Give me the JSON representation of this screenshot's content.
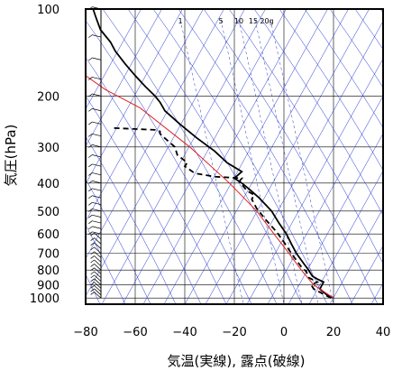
{
  "chart_data": {
    "type": "line",
    "xlabel": "気温(実線), 露点(破線)",
    "ylabel": "気圧(hPa)",
    "x_ticks": [
      -80,
      -60,
      -40,
      -20,
      0,
      20,
      40
    ],
    "y_ticks": [
      100,
      200,
      300,
      400,
      500,
      600,
      700,
      800,
      900,
      1000
    ],
    "xlim": [
      -80,
      40
    ],
    "ylim": [
      1050,
      100
    ],
    "y_scale": "log",
    "grid": true,
    "mixing_ratio_labels": [
      "1",
      "5",
      "10",
      "15",
      "20g"
    ],
    "series": [
      {
        "kind": "temperature",
        "style": "solid",
        "color": "#000000",
        "points": [
          {
            "t": 20.0,
            "p": 1000
          },
          {
            "t": 17.0,
            "p": 970
          },
          {
            "t": 14.5,
            "p": 930
          },
          {
            "t": 16.0,
            "p": 880
          },
          {
            "t": 13.5,
            "p": 860
          },
          {
            "t": 11.5,
            "p": 840
          },
          {
            "t": 9.5,
            "p": 790
          },
          {
            "t": 8.0,
            "p": 760
          },
          {
            "t": 5.0,
            "p": 700
          },
          {
            "t": 3.0,
            "p": 650
          },
          {
            "t": 1.0,
            "p": 600
          },
          {
            "t": -2.0,
            "p": 550
          },
          {
            "t": -5.0,
            "p": 500
          },
          {
            "t": -10.0,
            "p": 450
          },
          {
            "t": -14.0,
            "p": 420
          },
          {
            "t": -17.0,
            "p": 400
          },
          {
            "t": -20.0,
            "p": 385
          },
          {
            "t": -17.0,
            "p": 365
          },
          {
            "t": -23.0,
            "p": 340
          },
          {
            "t": -28.0,
            "p": 310
          },
          {
            "t": -35.0,
            "p": 280
          },
          {
            "t": -42.0,
            "p": 250
          },
          {
            "t": -48.0,
            "p": 225
          },
          {
            "t": -50.0,
            "p": 210
          },
          {
            "t": -52.0,
            "p": 200
          },
          {
            "t": -56.0,
            "p": 185
          },
          {
            "t": -60.0,
            "p": 170
          },
          {
            "t": -64.0,
            "p": 155
          },
          {
            "t": -68.0,
            "p": 140
          },
          {
            "t": -70.0,
            "p": 130
          },
          {
            "t": -74.0,
            "p": 118
          },
          {
            "t": -75.0,
            "p": 112
          },
          {
            "t": -76.0,
            "p": 106
          },
          {
            "t": -77.0,
            "p": 100
          }
        ]
      },
      {
        "kind": "dewpoint",
        "style": "dashed",
        "color": "#000000",
        "points": [
          {
            "t": 19.0,
            "p": 1000
          },
          {
            "t": 15.0,
            "p": 960
          },
          {
            "t": 12.0,
            "p": 930
          },
          {
            "t": 11.0,
            "p": 900
          },
          {
            "t": 13.5,
            "p": 880
          },
          {
            "t": 10.0,
            "p": 850
          },
          {
            "t": 9.0,
            "p": 810
          },
          {
            "t": 7.0,
            "p": 780
          },
          {
            "t": 4.0,
            "p": 720
          },
          {
            "t": 2.0,
            "p": 680
          },
          {
            "t": 0.0,
            "p": 640
          },
          {
            "t": -3.0,
            "p": 590
          },
          {
            "t": -7.0,
            "p": 540
          },
          {
            "t": -11.0,
            "p": 490
          },
          {
            "t": -13.0,
            "p": 455
          },
          {
            "t": -12.0,
            "p": 440
          },
          {
            "t": -15.0,
            "p": 425
          },
          {
            "t": -18.0,
            "p": 395
          },
          {
            "t": -17.0,
            "p": 385
          },
          {
            "t": -28.0,
            "p": 380
          },
          {
            "t": -36.0,
            "p": 370
          },
          {
            "t": -40.0,
            "p": 350
          },
          {
            "t": -39.0,
            "p": 340
          },
          {
            "t": -43.0,
            "p": 320
          },
          {
            "t": -44.0,
            "p": 300
          },
          {
            "t": -48.0,
            "p": 280
          },
          {
            "t": -50.0,
            "p": 270
          },
          {
            "t": -50.0,
            "p": 265
          },
          {
            "t": -52.0,
            "p": 262
          },
          {
            "t": -69.0,
            "p": 258
          }
        ]
      },
      {
        "kind": "reference",
        "style": "solid",
        "color": "#e02020",
        "points": [
          {
            "t": 20.0,
            "p": 1000
          },
          {
            "t": 12.0,
            "p": 900
          },
          {
            "t": 7.0,
            "p": 800
          },
          {
            "t": 2.0,
            "p": 700
          },
          {
            "t": -4.0,
            "p": 600
          },
          {
            "t": -11.0,
            "p": 500
          },
          {
            "t": -22.0,
            "p": 400
          },
          {
            "t": -38.0,
            "p": 300
          },
          {
            "t": -58.0,
            "p": 220
          },
          {
            "t": -72.0,
            "p": 190
          },
          {
            "t": -80.0,
            "p": 170
          }
        ]
      }
    ],
    "wind_barb_pressures": [
      1000,
      975,
      950,
      925,
      900,
      875,
      850,
      825,
      800,
      775,
      750,
      725,
      700,
      675,
      650,
      625,
      600,
      575,
      550,
      525,
      500,
      475,
      450,
      425,
      400,
      375,
      350,
      325,
      300,
      275,
      250,
      225,
      200,
      175,
      150,
      125,
      100
    ]
  }
}
